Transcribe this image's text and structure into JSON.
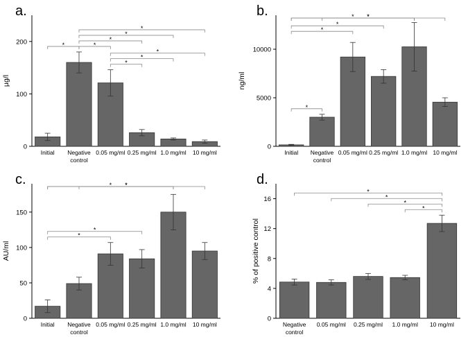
{
  "chart_data": [
    {
      "type": "bar",
      "panel": "a.",
      "ylabel": "µg/l",
      "ylim": [
        0,
        250
      ],
      "yticks": [
        0,
        100,
        200
      ],
      "categories": [
        "Initial",
        "Negative control",
        "0.05 mg/ml",
        "0.25 mg/ml",
        "1.0 mg/ml",
        "10 mg/ml"
      ],
      "values": [
        18,
        160,
        121,
        26,
        14,
        9
      ],
      "errors": [
        7,
        20,
        25,
        6,
        2,
        3
      ],
      "significance": [
        {
          "from": 0,
          "to": 1,
          "level": 1,
          "label": "*"
        },
        {
          "from": 1,
          "to": 2,
          "level": 1,
          "label": "*"
        },
        {
          "from": 1,
          "to": 3,
          "level": 2,
          "label": "*"
        },
        {
          "from": 1,
          "to": 4,
          "level": 3,
          "label": "*"
        },
        {
          "from": 1,
          "to": 5,
          "level": 4,
          "label": "*"
        },
        {
          "from": 2,
          "to": 3,
          "level": 1,
          "label": "*"
        },
        {
          "from": 2,
          "to": 4,
          "level": 2,
          "label": "*"
        },
        {
          "from": 2,
          "to": 5,
          "level": 3,
          "label": "*"
        }
      ]
    },
    {
      "type": "bar",
      "panel": "b.",
      "ylabel": "ng/ml",
      "ylim": [
        0,
        13500
      ],
      "yticks": [
        0,
        5000,
        10000
      ],
      "categories": [
        "Initial",
        "Negative control",
        "0.05 mg/ml",
        "0.25 mg/ml",
        "1.0 mg/ml",
        "10 mg/ml"
      ],
      "values": [
        150,
        3000,
        9200,
        7200,
        10250,
        4550
      ],
      "errors": [
        50,
        300,
        1500,
        700,
        2500,
        450
      ],
      "significance": [
        {
          "from": 0,
          "to": 1,
          "level": 1,
          "label": "*"
        },
        {
          "from": 0,
          "to": 2,
          "level": 2,
          "label": "*"
        },
        {
          "from": 0,
          "to": 3,
          "level": 3,
          "label": "*"
        },
        {
          "from": 0,
          "to": 4,
          "level": 4,
          "label": "*"
        },
        {
          "from": 0,
          "to": 5,
          "level": 5,
          "label": "*"
        },
        {
          "from": 1,
          "to": 4,
          "level": 1,
          "label": "*"
        }
      ]
    },
    {
      "type": "bar",
      "panel": "c.",
      "ylabel": "AU/ml",
      "ylim": [
        0,
        190
      ],
      "yticks": [
        0,
        50,
        100,
        150
      ],
      "categories": [
        "Initial",
        "Negative control",
        "0.05 mg/ml",
        "0.25 mg/ml",
        "1.0 mg/ml",
        "10 mg/ml"
      ],
      "values": [
        17,
        49,
        91,
        84,
        150,
        95
      ],
      "errors": [
        9,
        9,
        16,
        13,
        25,
        12
      ],
      "significance": [
        {
          "from": 0,
          "to": 2,
          "level": 1,
          "label": "*"
        },
        {
          "from": 0,
          "to": 3,
          "level": 2,
          "label": "*"
        },
        {
          "from": 0,
          "to": 4,
          "level": 3,
          "label": "*"
        },
        {
          "from": 0,
          "to": 5,
          "level": 4,
          "label": "*"
        },
        {
          "from": 1,
          "to": 4,
          "level": 5,
          "label": "*"
        }
      ]
    },
    {
      "type": "bar",
      "panel": "d.",
      "ylabel": "% of positive control",
      "ylim": [
        0,
        18
      ],
      "yticks": [
        0,
        4,
        8,
        12,
        16
      ],
      "categories": [
        "Negative control",
        "0.05 mg/ml",
        "0.25 mg/ml",
        "1.0 mg/ml",
        "10 mg/ml"
      ],
      "values": [
        4.85,
        4.8,
        5.6,
        5.45,
        12.7
      ],
      "errors": [
        0.4,
        0.35,
        0.4,
        0.3,
        1.1
      ],
      "significance": [
        {
          "from": 0,
          "to": 4,
          "level": 4,
          "label": "*"
        },
        {
          "from": 1,
          "to": 4,
          "level": 3,
          "label": "*"
        },
        {
          "from": 2,
          "to": 4,
          "level": 2,
          "label": "*"
        },
        {
          "from": 3,
          "to": 4,
          "level": 1,
          "label": "*"
        }
      ]
    }
  ]
}
